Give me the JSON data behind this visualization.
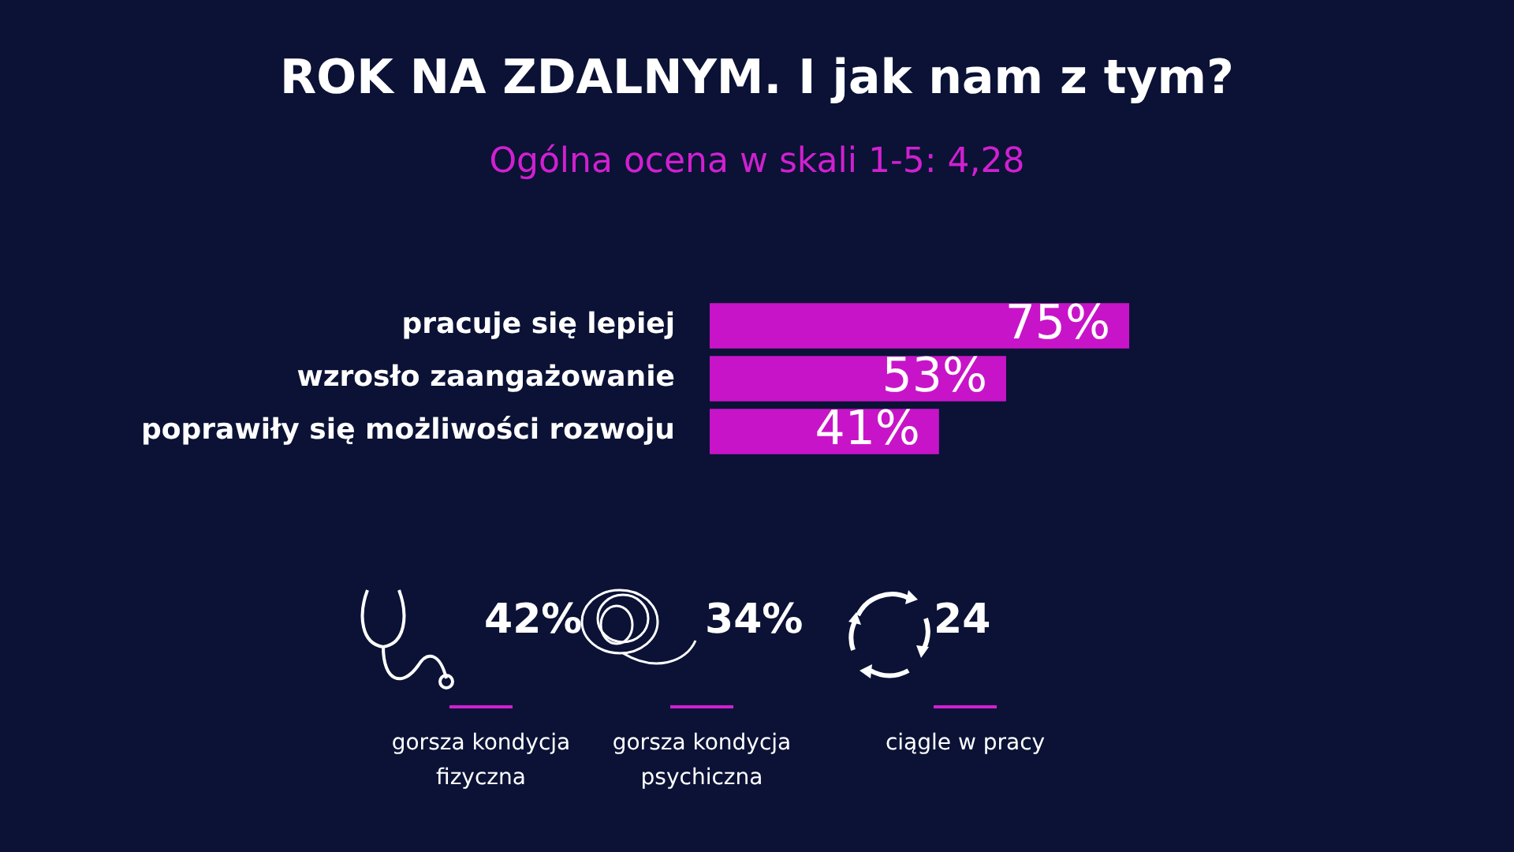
{
  "chart_data": {
    "type": "bar",
    "orientation": "horizontal",
    "title": "ROK NA ZDALNYM. I jak nam z tym?",
    "subtitle": "Ogólna ocena w skali 1-5: 4,28",
    "categories": [
      "pracuje się lepiej",
      "wzrosło zaangażowanie",
      "poprawiły się możliwości rozwoju"
    ],
    "values": [
      75,
      53,
      41
    ],
    "value_labels": [
      "75%",
      "53%",
      "41%"
    ],
    "color": "#c814c8",
    "grid": false,
    "legend": false,
    "annotations": [
      "42%",
      "gorsza kondycja fizyczna",
      "34%",
      "gorsza kondycja psychiczna",
      "24",
      "ciągle w pracy"
    ]
  }
}
